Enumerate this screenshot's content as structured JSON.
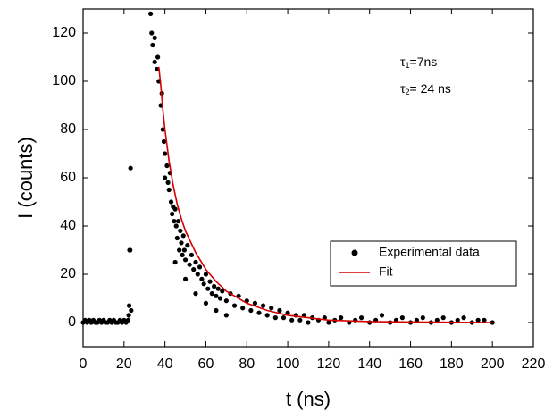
{
  "chart_data": {
    "type": "scatter",
    "x_label": "t (ns)",
    "y_label": "I (counts)",
    "xlim": [
      0,
      220
    ],
    "ylim": [
      -10,
      130
    ],
    "xticks": [
      0,
      20,
      40,
      60,
      80,
      100,
      120,
      140,
      160,
      180,
      200,
      220
    ],
    "yticks": [
      0,
      20,
      40,
      60,
      80,
      100,
      120
    ],
    "legend_position": "right",
    "annotations": [
      {
        "symbol": "τ",
        "subscript": "1",
        "text": "=7ns"
      },
      {
        "symbol": "τ",
        "subscript": "2",
        "text": "= 24 ns"
      }
    ],
    "series": [
      {
        "name": "Experimental data",
        "color": "#000000",
        "mode": "markers",
        "x": [
          0,
          1,
          2,
          3,
          4,
          5,
          6,
          7,
          8,
          9,
          10,
          11,
          12,
          13,
          14,
          15,
          16,
          17,
          18,
          19,
          20,
          21,
          22,
          22.3,
          22.5,
          22.7,
          23,
          23.2,
          23.5,
          33,
          33.5,
          34,
          35,
          35,
          36,
          36.5,
          37,
          38,
          38.5,
          39,
          39.5,
          40,
          40,
          41,
          41.5,
          42,
          42.5,
          43,
          43.5,
          44,
          44.5,
          45,
          45,
          45.5,
          46,
          46.5,
          47,
          47.5,
          48,
          48.5,
          49,
          49.5,
          50,
          50,
          51,
          52,
          53,
          54,
          55,
          55,
          56,
          57,
          58,
          59,
          60,
          60,
          61,
          62,
          63,
          64,
          65,
          65,
          66,
          67,
          68,
          70,
          70,
          72,
          74,
          76,
          78,
          80,
          82,
          84,
          86,
          88,
          90,
          92,
          94,
          96,
          98,
          100,
          102,
          104,
          106,
          108,
          110,
          112,
          115,
          118,
          120,
          123,
          126,
          130,
          133,
          136,
          140,
          143,
          146,
          150,
          153,
          156,
          160,
          163,
          166,
          170,
          173,
          176,
          180,
          183,
          186,
          190,
          193,
          196,
          200
        ],
        "values": [
          0,
          1,
          0,
          1,
          0,
          1,
          0,
          0,
          1,
          0,
          1,
          0,
          0,
          1,
          0,
          1,
          0,
          0,
          1,
          0,
          1,
          0,
          1,
          3,
          7,
          30,
          30,
          64,
          5,
          128,
          120,
          115,
          118,
          108,
          105,
          110,
          100,
          90,
          95,
          80,
          75,
          70,
          60,
          65,
          58,
          55,
          62,
          50,
          45,
          48,
          42,
          47,
          25,
          40,
          35,
          42,
          30,
          38,
          33,
          28,
          36,
          30,
          26,
          18,
          32,
          24,
          28,
          22,
          25,
          12,
          20,
          23,
          18,
          16,
          20,
          8,
          14,
          17,
          12,
          15,
          11,
          5,
          14,
          10,
          13,
          9,
          3,
          12,
          7,
          11,
          6,
          9,
          5,
          8,
          4,
          7,
          3,
          6,
          2,
          5,
          2,
          4,
          1,
          3,
          1,
          3,
          0,
          2,
          1,
          2,
          0,
          1,
          2,
          0,
          1,
          2,
          0,
          1,
          3,
          0,
          1,
          2,
          0,
          1,
          2,
          0,
          1,
          2,
          0,
          1,
          2,
          0,
          1,
          1,
          0
        ]
      },
      {
        "name": "Fit",
        "color": "#d40000",
        "mode": "line",
        "x": [
          37,
          38,
          39,
          40,
          42,
          44,
          46,
          48,
          50,
          55,
          60,
          65,
          70,
          80,
          90,
          100,
          120,
          140,
          160,
          180,
          200
        ],
        "values": [
          106,
          98,
          88,
          80,
          67,
          57,
          49,
          43,
          38,
          29,
          22,
          17,
          13,
          8,
          5,
          3,
          1,
          0.4,
          0.2,
          0.1,
          0
        ]
      }
    ]
  }
}
